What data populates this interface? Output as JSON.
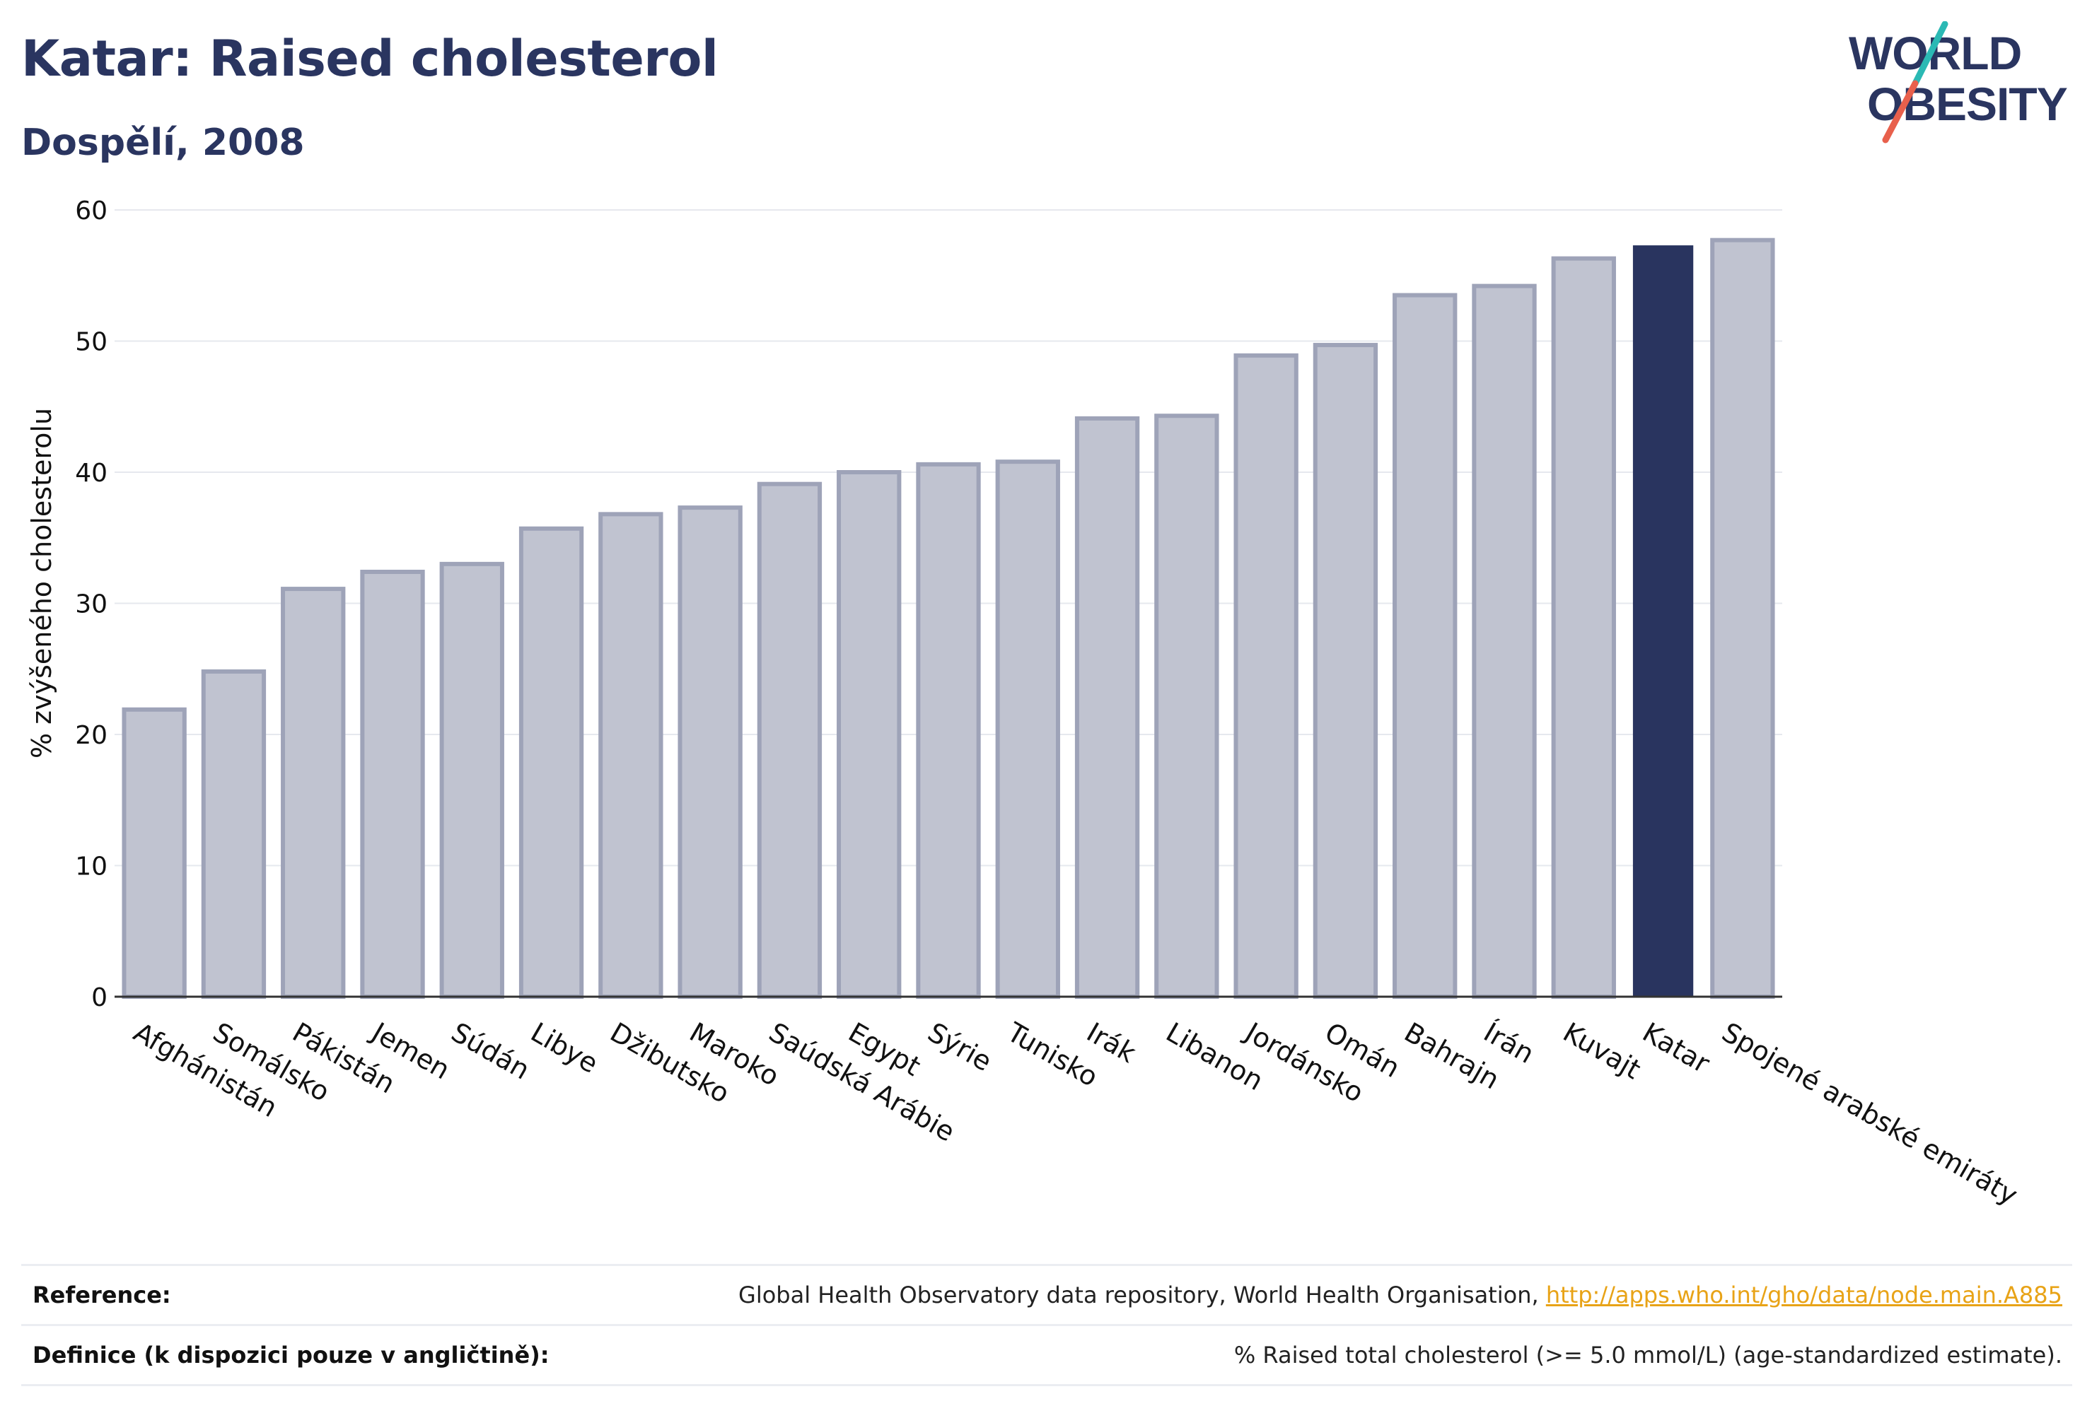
{
  "header": {
    "title": "Katar: Raised cholesterol",
    "subtitle": "Dospělí, 2008"
  },
  "logo": {
    "line1": "WORLD",
    "line2": "OBESITY",
    "accent_colors": [
      "#2bb9b4",
      "#e8604c"
    ]
  },
  "chart_data": {
    "type": "bar",
    "ylabel": "% zvýšeného cholesterolu",
    "ylim": [
      0,
      60
    ],
    "yticks": [
      0,
      10,
      20,
      30,
      40,
      50,
      60
    ],
    "grid": true,
    "highlight": "Katar",
    "colors": {
      "bar": "#c0c3d0",
      "bar_border": "#9ea3b8",
      "highlight": "#29345f",
      "grid": "#e6e8ee",
      "axis": "#333333"
    },
    "categories": [
      "Afghánistán",
      "Somálsko",
      "Pákistán",
      "Jemen",
      "Súdán",
      "Libye",
      "Džibutsko",
      "Maroko",
      "Saúdská Arábie",
      "Egypt",
      "Sýrie",
      "Tunisko",
      "Irák",
      "Libanon",
      "Jordánsko",
      "Omán",
      "Bahrajn",
      "Írán",
      "Kuvajt",
      "Katar",
      "Spojené arabské emiráty"
    ],
    "values": [
      21.9,
      24.8,
      31.1,
      32.4,
      33.0,
      35.7,
      36.8,
      37.3,
      39.1,
      40.0,
      40.6,
      40.8,
      44.1,
      44.3,
      48.9,
      49.7,
      53.5,
      54.2,
      56.3,
      57.3,
      57.7
    ]
  },
  "references": [
    {
      "label": "Reference:",
      "text": "Global Health Observatory data repository, World Health Organisation, ",
      "link": "http://apps.who.int/gho/data/node.main.A885"
    },
    {
      "label": "Definice (k dispozici pouze v angličtině):",
      "text": "% Raised total cholesterol (>= 5.0 mmol/L) (age-standardized estimate).",
      "link": ""
    }
  ]
}
